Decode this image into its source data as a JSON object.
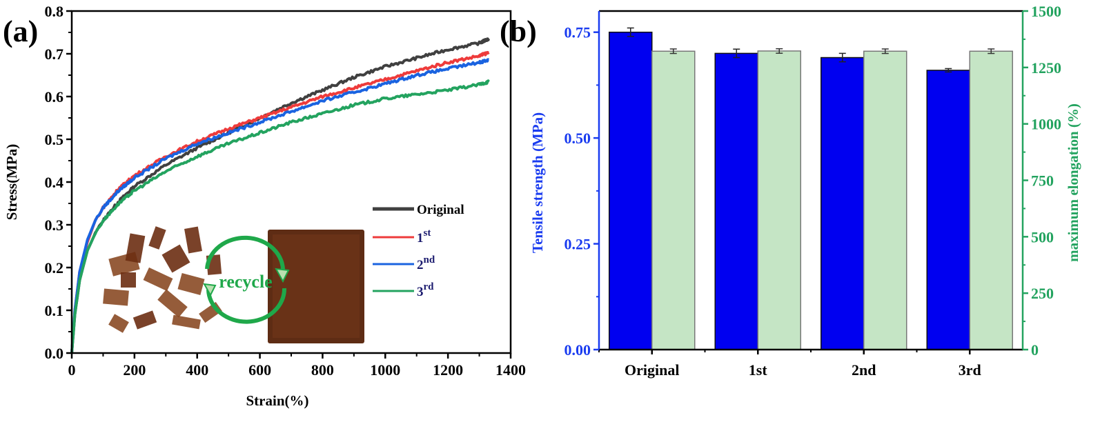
{
  "chart_data": [
    {
      "panel": "(a)",
      "type": "line",
      "title": "",
      "xlabel": "Strain(%)",
      "ylabel": "Stress(MPa)",
      "xlim": [
        0,
        1400
      ],
      "ylim": [
        0.0,
        0.8
      ],
      "xticks": [
        "0",
        "200",
        "400",
        "600",
        "800",
        "1000",
        "1200",
        "1400"
      ],
      "yticks": [
        "0.0",
        "0.1",
        "0.2",
        "0.3",
        "0.4",
        "0.5",
        "0.6",
        "0.7",
        "0.8"
      ],
      "grid": false,
      "legend_position": "bottom-right",
      "series": [
        {
          "name": "Original",
          "label_base": "Original",
          "label_sup": "",
          "color": "#404040",
          "x": [
            0,
            10,
            25,
            50,
            75,
            100,
            150,
            200,
            300,
            400,
            500,
            600,
            700,
            800,
            900,
            1000,
            1100,
            1200,
            1300,
            1330
          ],
          "y": [
            0,
            0.09,
            0.17,
            0.24,
            0.28,
            0.31,
            0.355,
            0.39,
            0.44,
            0.48,
            0.515,
            0.55,
            0.585,
            0.615,
            0.645,
            0.67,
            0.69,
            0.71,
            0.725,
            0.735
          ]
        },
        {
          "name": "1st",
          "label_base": "1",
          "label_sup": "st",
          "color": "#ee3b3b",
          "x": [
            0,
            10,
            25,
            50,
            75,
            100,
            150,
            200,
            300,
            400,
            500,
            600,
            700,
            800,
            900,
            1000,
            1100,
            1200,
            1300,
            1330
          ],
          "y": [
            0,
            0.1,
            0.19,
            0.26,
            0.31,
            0.34,
            0.385,
            0.415,
            0.46,
            0.495,
            0.525,
            0.55,
            0.575,
            0.6,
            0.62,
            0.64,
            0.66,
            0.68,
            0.695,
            0.703
          ]
        },
        {
          "name": "2nd",
          "label_base": "2",
          "label_sup": "nd",
          "color": "#1a63e0",
          "x": [
            0,
            10,
            25,
            50,
            75,
            100,
            150,
            200,
            300,
            400,
            500,
            600,
            700,
            800,
            900,
            1000,
            1100,
            1200,
            1300,
            1330
          ],
          "y": [
            0,
            0.1,
            0.19,
            0.265,
            0.31,
            0.34,
            0.38,
            0.41,
            0.455,
            0.49,
            0.515,
            0.54,
            0.565,
            0.59,
            0.61,
            0.63,
            0.65,
            0.665,
            0.68,
            0.686
          ]
        },
        {
          "name": "3rd",
          "label_base": "3",
          "label_sup": "rd",
          "color": "#23a35f",
          "x": [
            0,
            10,
            25,
            50,
            75,
            100,
            150,
            200,
            300,
            400,
            500,
            600,
            700,
            800,
            900,
            1000,
            1100,
            1200,
            1300,
            1330
          ],
          "y": [
            0,
            0.09,
            0.17,
            0.24,
            0.28,
            0.31,
            0.35,
            0.38,
            0.425,
            0.46,
            0.49,
            0.515,
            0.54,
            0.56,
            0.58,
            0.595,
            0.605,
            0.615,
            0.628,
            0.635
          ]
        }
      ],
      "inset": {
        "description": "photo of shredded brown film pieces and recycled brown film sheet",
        "annotation": "recycle",
        "annotation_color": "#1fa84a"
      }
    },
    {
      "panel": "(b)",
      "type": "bar",
      "title": "",
      "xlabel": "",
      "categories": [
        "Original",
        "1st",
        "2nd",
        "3rd"
      ],
      "ylabel_left": "Tensile strength (MPa)",
      "ylabel_right": "maximum elongation (%)",
      "ylim_left": [
        0.0,
        0.8
      ],
      "ylim_right": [
        0,
        1500
      ],
      "yticks_left": [
        "0.00",
        "0.25",
        "0.50",
        "0.75"
      ],
      "yticks_right": [
        "0",
        "250",
        "500",
        "750",
        "1000",
        "1250",
        "1500"
      ],
      "left_axis_color": "#1a3cf0",
      "right_axis_color": "#23a35f",
      "grid": false,
      "series": [
        {
          "name": "Tensile strength (MPa)",
          "axis": "left",
          "color": "#0000f0",
          "values": [
            0.75,
            0.7,
            0.69,
            0.66
          ],
          "errors": [
            0.01,
            0.01,
            0.01,
            0.004
          ]
        },
        {
          "name": "maximum elongation (%)",
          "axis": "right",
          "color": "#c5e5c5",
          "values": [
            1322,
            1323,
            1322,
            1322
          ],
          "errors": [
            10,
            10,
            10,
            10
          ]
        }
      ]
    }
  ]
}
